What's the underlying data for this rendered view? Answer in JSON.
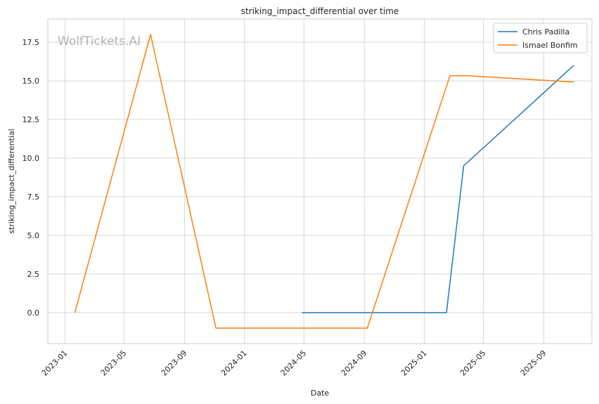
{
  "chart_data": {
    "type": "line",
    "title": "striking_impact_differential over time",
    "xlabel": "Date",
    "ylabel": "striking_impact_differential",
    "watermark": "WolfTickets.AI",
    "x_type": "date",
    "xlim": [
      "2022-11-27",
      "2025-12-08"
    ],
    "ylim": [
      -2.0,
      19.0
    ],
    "x_ticks": [
      "2023-01",
      "2023-05",
      "2023-09",
      "2024-01",
      "2024-05",
      "2024-09",
      "2025-01",
      "2025-05",
      "2025-09"
    ],
    "x_tick_dates": [
      "2023-01-01",
      "2023-05-01",
      "2023-09-01",
      "2024-01-01",
      "2024-05-01",
      "2024-09-01",
      "2025-01-01",
      "2025-05-01",
      "2025-09-01"
    ],
    "y_ticks": [
      0.0,
      2.5,
      5.0,
      7.5,
      10.0,
      12.5,
      15.0,
      17.5
    ],
    "y_tick_labels": [
      "0.0",
      "2.5",
      "5.0",
      "7.5",
      "10.0",
      "12.5",
      "15.0",
      "17.5"
    ],
    "grid": true,
    "legend_position": "top-right",
    "series": [
      {
        "name": "Chris Padilla",
        "color": "#1f77b4",
        "points": [
          {
            "x": "2024-04-27",
            "y": 0.0
          },
          {
            "x": "2025-02-15",
            "y": 0.0
          },
          {
            "x": "2025-03-22",
            "y": 9.5
          },
          {
            "x": "2025-11-01",
            "y": 16.0
          }
        ]
      },
      {
        "name": "Ismael Bonfim",
        "color": "#ff7f0e",
        "points": [
          {
            "x": "2023-01-21",
            "y": 0.0
          },
          {
            "x": "2023-06-24",
            "y": 18.0
          },
          {
            "x": "2023-11-04",
            "y": -1.0
          },
          {
            "x": "2024-09-07",
            "y": -1.0
          },
          {
            "x": "2025-02-22",
            "y": 15.33
          },
          {
            "x": "2025-03-29",
            "y": 15.33
          },
          {
            "x": "2025-11-01",
            "y": 14.92
          }
        ]
      }
    ]
  }
}
